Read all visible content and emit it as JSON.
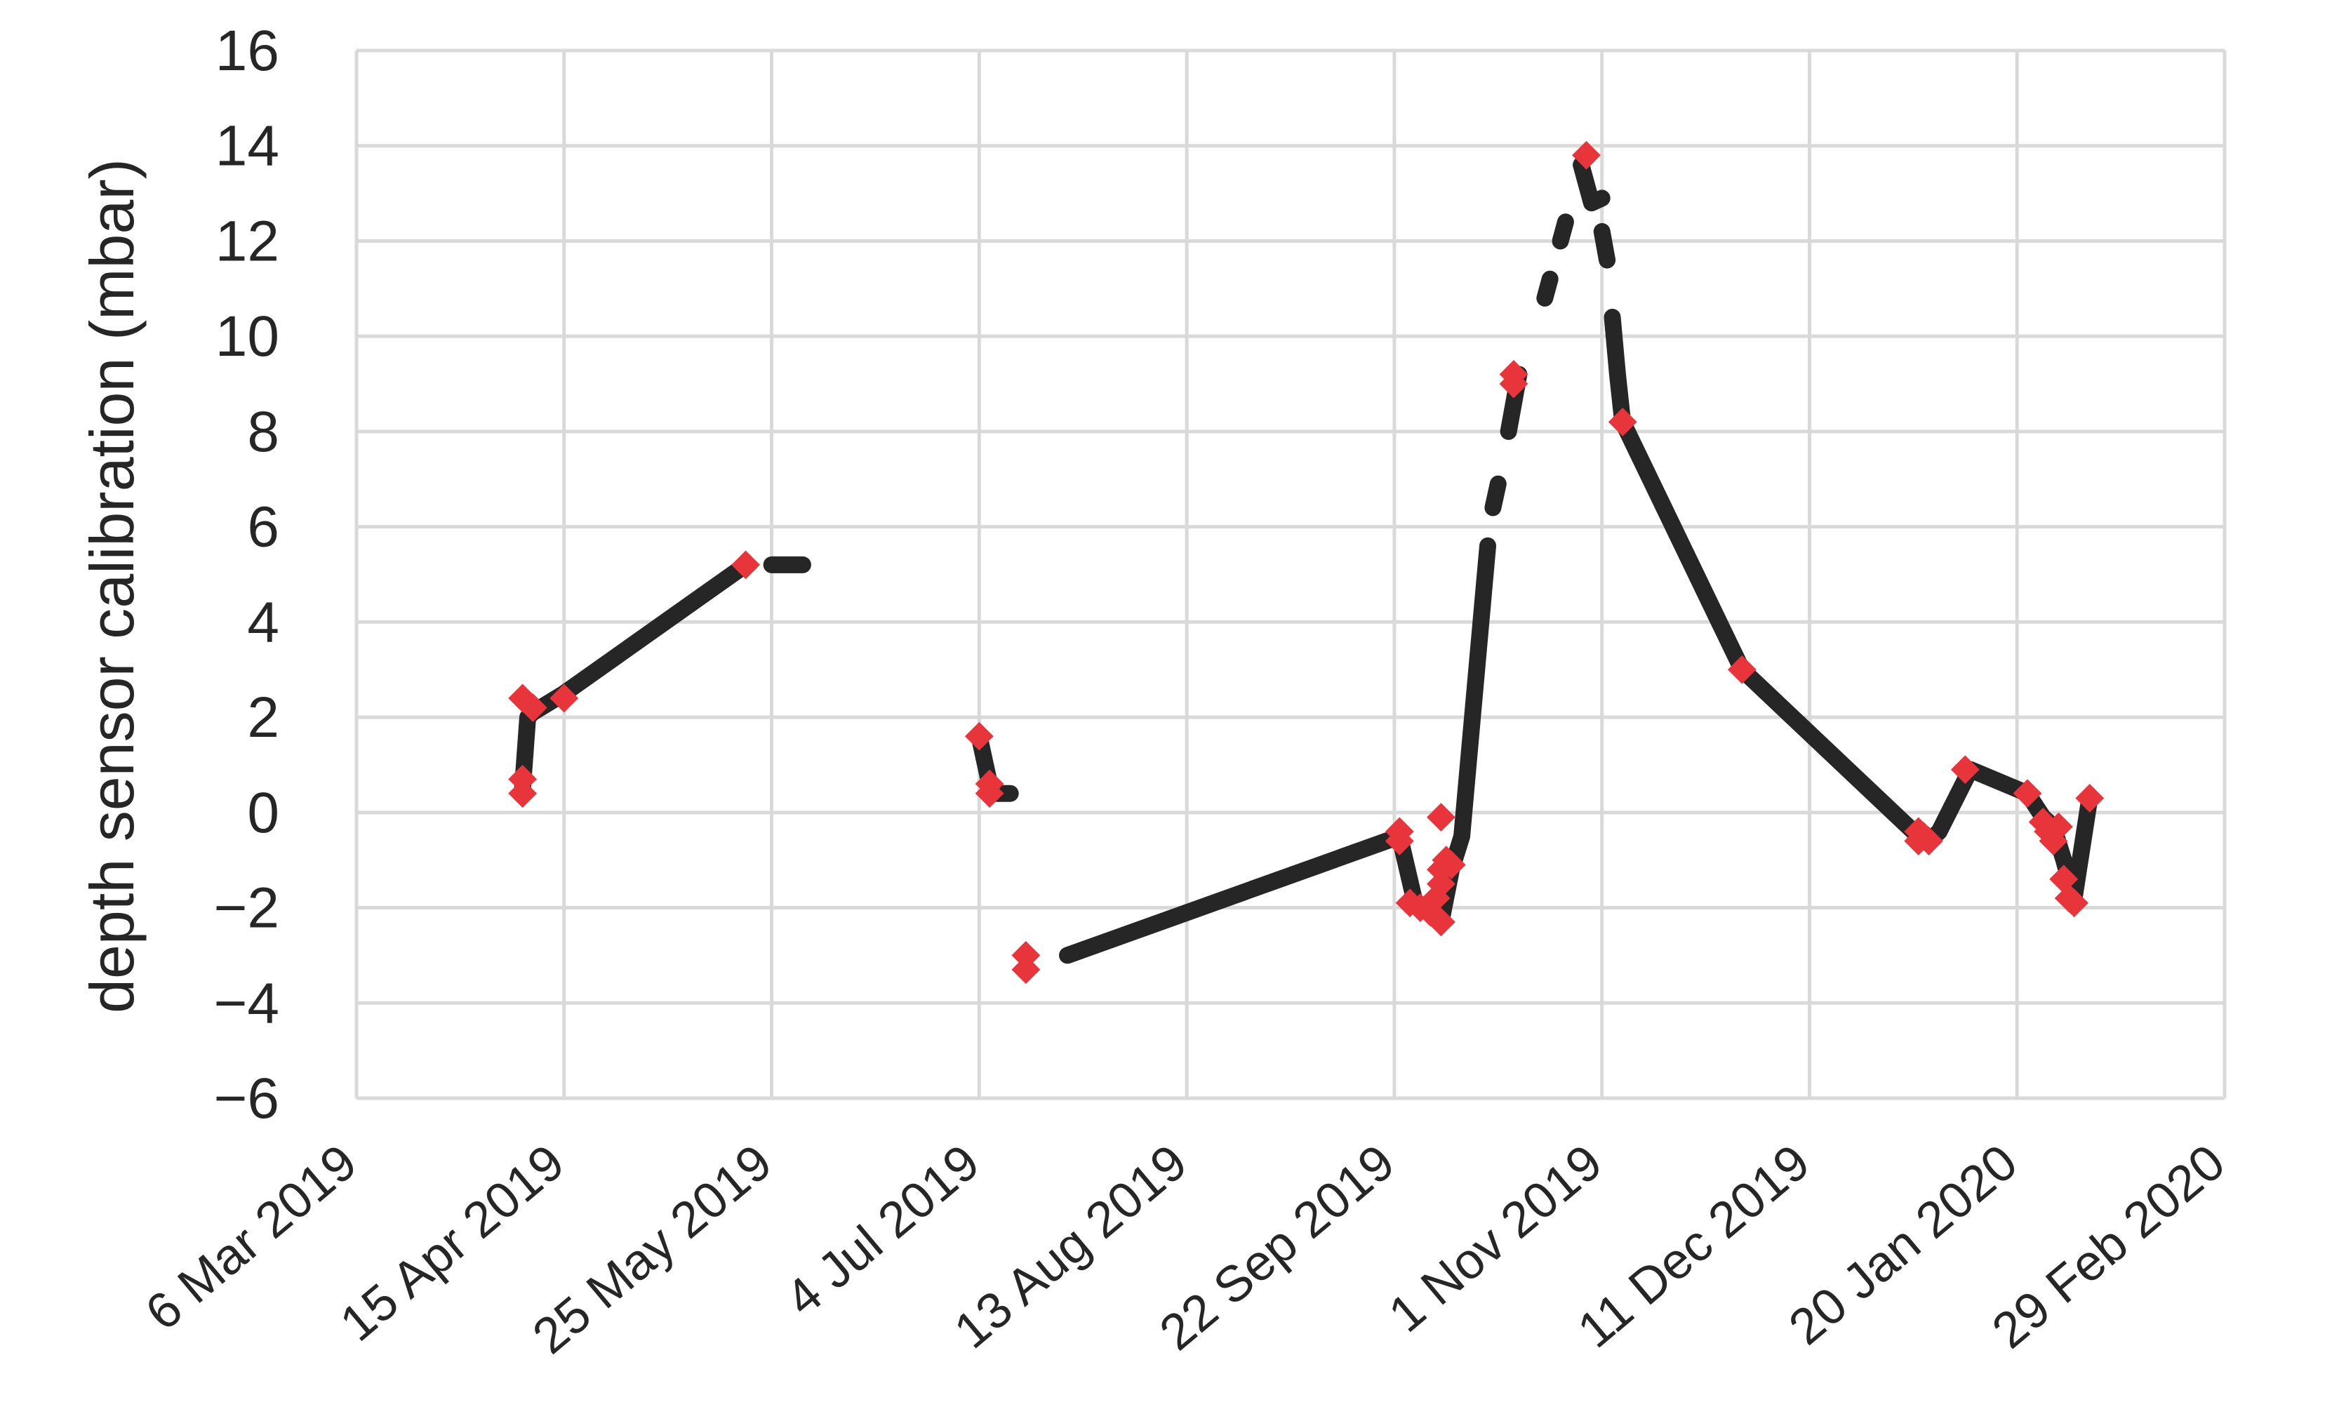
{
  "chart_data": {
    "type": "scatter",
    "title": "",
    "xlabel": "",
    "ylabel": "depth sensor calibration (mbar)",
    "xlim": [
      "2019-03-06",
      "2020-02-29"
    ],
    "ylim": [
      -6,
      16
    ],
    "x_ticks": [
      "6 Mar 2019",
      "15 Apr 2019",
      "25 May 2019",
      "4 Jul 2019",
      "13 Aug 2019",
      "22 Sep 2019",
      "1 Nov 2019",
      "11 Dec 2019",
      "20 Jan 2020",
      "29 Feb 2020"
    ],
    "y_ticks": [
      "16",
      "14",
      "12",
      "10",
      "8",
      "6",
      "4",
      "2",
      "0",
      "−2",
      "−4",
      "−6"
    ],
    "y_tick_values": [
      16,
      14,
      12,
      10,
      8,
      6,
      4,
      2,
      0,
      -2,
      -4,
      -6
    ],
    "grid": true,
    "colors": {
      "series": "#262626",
      "markers": "#e8353b",
      "grid": "#d9d9d9"
    },
    "series": [
      {
        "style": "dark-dots",
        "segments": [
          [
            [
              "2019-04-07",
              0.5
            ],
            [
              "2019-04-08",
              2.0
            ],
            [
              "2019-04-09",
              2.1
            ],
            [
              "2019-04-15",
              2.5
            ],
            [
              "2019-05-20",
              5.2
            ]
          ],
          [
            [
              "2019-05-25",
              5.2
            ],
            [
              "2019-05-31",
              5.2
            ]
          ],
          [
            [
              "2019-07-04",
              1.6
            ],
            [
              "2019-07-06",
              0.6
            ],
            [
              "2019-07-07",
              0.4
            ],
            [
              "2019-07-10",
              0.4
            ]
          ],
          [
            [
              "2019-07-21",
              -3.0
            ],
            [
              "2019-09-23",
              -0.5
            ],
            [
              "2019-09-26",
              -1.9
            ],
            [
              "2019-09-28",
              -2.0
            ],
            [
              "2019-09-30",
              -2.1
            ],
            [
              "2019-10-01",
              -2.3
            ],
            [
              "2019-10-03",
              -1.2
            ],
            [
              "2019-10-05",
              -0.5
            ],
            [
              "2019-10-10",
              5.6
            ]
          ],
          [
            [
              "2019-10-11",
              6.4
            ],
            [
              "2019-10-12",
              6.9
            ]
          ],
          [
            [
              "2019-10-14",
              8.0
            ],
            [
              "2019-10-16",
              9.2
            ]
          ],
          [
            [
              "2019-10-21",
              10.8
            ],
            [
              "2019-10-22",
              11.2
            ]
          ],
          [
            [
              "2019-10-24",
              12.0
            ],
            [
              "2019-10-25",
              12.4
            ]
          ],
          [
            [
              "2019-10-28",
              13.6
            ],
            [
              "2019-10-30",
              12.8
            ],
            [
              "2019-11-01",
              12.9
            ]
          ],
          [
            [
              "2019-11-01",
              12.2
            ],
            [
              "2019-11-02",
              11.6
            ]
          ],
          [
            [
              "2019-11-03",
              10.4
            ],
            [
              "2019-11-04",
              9.2
            ],
            [
              "2019-11-05",
              8.2
            ],
            [
              "2019-11-28",
              3.0
            ],
            [
              "2020-01-01",
              -0.5
            ],
            [
              "2020-01-03",
              -0.6
            ],
            [
              "2020-01-05",
              -0.4
            ],
            [
              "2020-01-11",
              0.9
            ],
            [
              "2020-01-22",
              0.4
            ],
            [
              "2020-01-25",
              -0.1
            ],
            [
              "2020-01-27",
              -0.3
            ],
            [
              "2020-01-29",
              -1.0
            ],
            [
              "2020-01-31",
              -1.8
            ],
            [
              "2020-02-03",
              0.3
            ]
          ]
        ]
      },
      {
        "style": "red-diamonds",
        "points": [
          [
            "2019-04-07",
            0.4
          ],
          [
            "2019-04-07",
            0.7
          ],
          [
            "2019-04-07",
            2.4
          ],
          [
            "2019-04-09",
            2.2
          ],
          [
            "2019-04-15",
            2.4
          ],
          [
            "2019-05-20",
            5.2
          ],
          [
            "2019-07-04",
            1.6
          ],
          [
            "2019-07-06",
            0.6
          ],
          [
            "2019-07-06",
            0.4
          ],
          [
            "2019-07-13",
            -3.0
          ],
          [
            "2019-07-13",
            -3.3
          ],
          [
            "2019-09-23",
            -0.4
          ],
          [
            "2019-09-23",
            -0.6
          ],
          [
            "2019-09-25",
            -1.9
          ],
          [
            "2019-09-27",
            -2.0
          ],
          [
            "2019-09-29",
            -2.1
          ],
          [
            "2019-09-30",
            -1.8
          ],
          [
            "2019-10-01",
            -2.3
          ],
          [
            "2019-10-01",
            -1.5
          ],
          [
            "2019-10-01",
            -1.2
          ],
          [
            "2019-10-02",
            -1.0
          ],
          [
            "2019-10-03",
            -1.1
          ],
          [
            "2019-10-01",
            -0.1
          ],
          [
            "2019-10-15",
            9.2
          ],
          [
            "2019-10-15",
            9.0
          ],
          [
            "2019-10-29",
            13.8
          ],
          [
            "2019-11-05",
            8.2
          ],
          [
            "2019-11-28",
            3.0
          ],
          [
            "2020-01-01",
            -0.4
          ],
          [
            "2020-01-01",
            -0.6
          ],
          [
            "2020-01-02",
            -0.5
          ],
          [
            "2020-01-03",
            -0.6
          ],
          [
            "2020-01-10",
            0.9
          ],
          [
            "2020-01-22",
            0.4
          ],
          [
            "2020-01-25",
            -0.2
          ],
          [
            "2020-01-26",
            -0.4
          ],
          [
            "2020-01-27",
            -0.6
          ],
          [
            "2020-01-28",
            -0.3
          ],
          [
            "2020-01-29",
            -1.4
          ],
          [
            "2020-01-30",
            -1.8
          ],
          [
            "2020-01-31",
            -1.9
          ],
          [
            "2020-02-03",
            0.3
          ]
        ]
      }
    ]
  }
}
